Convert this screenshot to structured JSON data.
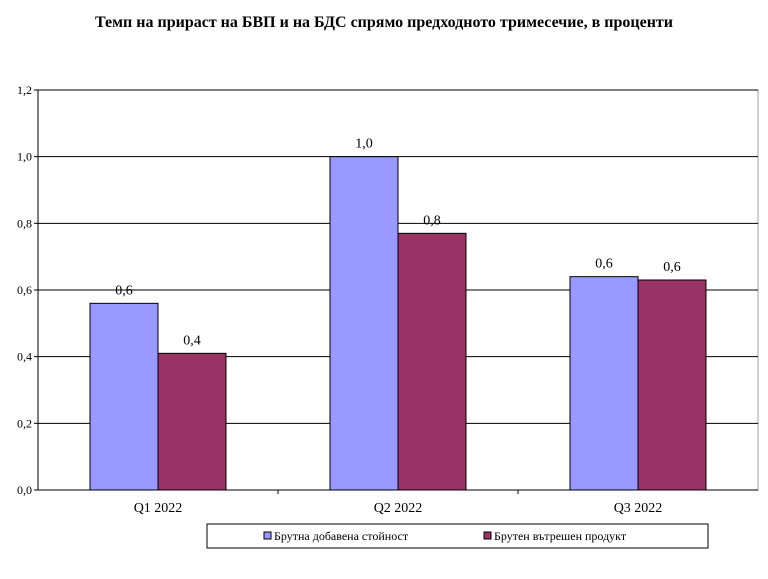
{
  "chart_data": {
    "type": "bar",
    "title": "Темп на прираст на БВП и на БДС спрямо предходното тримесечие, в проценти",
    "categories": [
      "Q1 2022",
      "Q2 2022",
      "Q3 2022"
    ],
    "series": [
      {
        "name": "Брутна добавена стойност",
        "values": [
          0.56,
          1.0,
          0.64
        ],
        "labels": [
          "0,6",
          "1,0",
          "0,6"
        ],
        "color": "#9999ff"
      },
      {
        "name": "Брутен вътрешен продукт",
        "values": [
          0.41,
          0.77,
          0.63
        ],
        "labels": [
          "0,4",
          "0,8",
          "0,6"
        ],
        "color": "#993366"
      }
    ],
    "ylim": [
      0,
      1.2
    ],
    "yticks": [
      0,
      0.2,
      0.4,
      0.6,
      0.8,
      1.0,
      1.2
    ],
    "ytick_labels": [
      "0,0",
      "0,2",
      "0,4",
      "0,6",
      "0,8",
      "1,0",
      "1,2"
    ],
    "grid": true,
    "legend_position": "bottom"
  }
}
